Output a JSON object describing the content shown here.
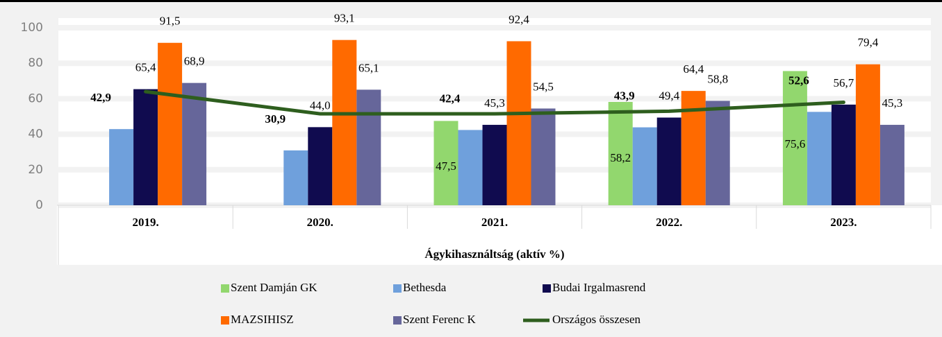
{
  "chart_data": {
    "type": "bar",
    "xlabel": "Ágykihasználtság (aktív %)",
    "categories": [
      "2019.",
      "2020.",
      "2021.",
      "2022.",
      "2023."
    ],
    "series": [
      {
        "name": "Szent Damján GK",
        "color": "#92d76e",
        "values": [
          null,
          null,
          47.5,
          58.2,
          75.6
        ],
        "value_labels": [
          null,
          null,
          "47,5",
          "58,2",
          "75,6"
        ]
      },
      {
        "name": "Bethesda",
        "color": "#6fa0dc",
        "values": [
          42.9,
          30.9,
          42.4,
          43.9,
          52.6
        ],
        "value_labels": [
          "42,9",
          "30,9",
          "42,4",
          "43,9",
          "52,6"
        ]
      },
      {
        "name": "Budai Irgalmasrend",
        "color": "#100b4f",
        "values": [
          65.4,
          44.0,
          45.3,
          49.4,
          56.7
        ],
        "value_labels": [
          "65,4",
          "44,0",
          "45,3",
          "49,4",
          "56,7"
        ]
      },
      {
        "name": "MAZSIHISZ",
        "color": "#ff6a00",
        "values": [
          91.5,
          93.1,
          92.4,
          64.4,
          79.4
        ],
        "value_labels": [
          "91,5",
          "93,1",
          "92,4",
          "64,4",
          "79,4"
        ]
      },
      {
        "name": "Szent Ferenc K",
        "color": "#66669a",
        "values": [
          68.9,
          65.1,
          54.5,
          58.8,
          45.3
        ],
        "value_labels": [
          "68,9",
          "65,1",
          "54,5",
          "58,8",
          "45,3"
        ]
      },
      {
        "name": "Országos összesen",
        "type": "line",
        "color": "#2e5e1e",
        "values": [
          64,
          51.5,
          51.5,
          53,
          58
        ]
      }
    ],
    "ylim": [
      0,
      100
    ],
    "yticks": [
      0,
      20,
      40,
      60,
      80,
      100
    ],
    "grid": true
  }
}
